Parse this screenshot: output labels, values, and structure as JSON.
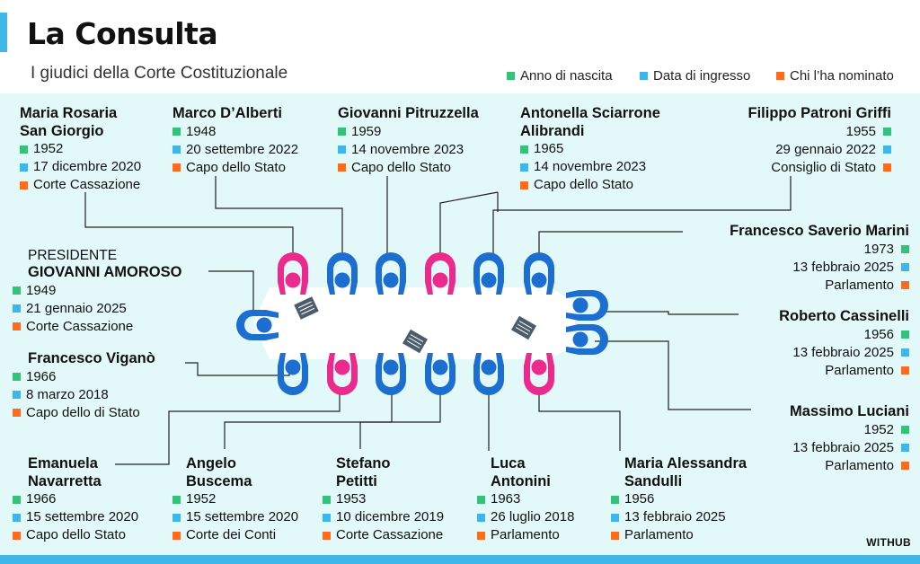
{
  "header": {
    "title": "La Consulta",
    "subtitle": "I giudici della Corte Costituzionale"
  },
  "legend": {
    "birth": "Anno di nascita",
    "entry": "Data di ingresso",
    "appointed": "Chi l’ha nominato"
  },
  "colors": {
    "accent": "#3fb7e9",
    "panel": "#e3f8f8",
    "birth": "#32c27a",
    "entry": "#3cb6ec",
    "appointed": "#ff6b1a",
    "man_figure": "#1c6fd1",
    "woman_figure": "#ec2a8d"
  },
  "judges": {
    "sangiorgio": {
      "name": "Maria Rosaria San Giorgio",
      "name_line1": "Maria Rosaria",
      "name_line2": "San Giorgio",
      "birth": "1952",
      "entry": "17 dicembre 2020",
      "appointed": "Corte Cassazione"
    },
    "dalberti": {
      "name": "Marco D’Alberti",
      "birth": "1948",
      "entry": "20 settembre 2022",
      "appointed": "Capo dello Stato"
    },
    "pitruzzella": {
      "name": "Giovanni Pitruzzella",
      "birth": "1959",
      "entry": "14 novembre 2023",
      "appointed": "Capo dello Stato"
    },
    "alibrandi": {
      "name_line1": "Antonella Sciarrone",
      "name_line2": "Alibrandi",
      "birth": "1965",
      "entry": "14 novembre 2023",
      "appointed": "Capo dello Stato"
    },
    "griffi": {
      "name": "Filippo Patroni Griffi",
      "birth": "1955",
      "entry": "29 gennaio 2022",
      "appointed": "Consiglio di Stato"
    },
    "marini": {
      "name": "Francesco Saverio Marini",
      "birth": "1973",
      "entry": "13 febbraio 2025",
      "appointed": "Parlamento"
    },
    "amoroso": {
      "label": "PRESIDENTE",
      "name": "GIOVANNI AMOROSO",
      "birth": "1949",
      "entry": "21 gennaio 2025",
      "appointed": "Corte Cassazione"
    },
    "cassinelli": {
      "name": "Roberto Cassinelli",
      "birth": "1956",
      "entry": "13 febbraio 2025",
      "appointed": "Parlamento"
    },
    "vigano": {
      "name": "Francesco Viganò",
      "birth": "1966",
      "entry": "8 marzo 2018",
      "appointed": "Capo dello di Stato"
    },
    "luciani": {
      "name": "Massimo Luciani",
      "birth": "1952",
      "entry": "13 febbraio 2025",
      "appointed": "Parlamento"
    },
    "navarretta": {
      "name_line1": "Emanuela",
      "name_line2": "Navarretta",
      "birth": "1966",
      "entry": "15 settembre 2020",
      "appointed": "Capo dello Stato"
    },
    "buscema": {
      "name_line1": "Angelo",
      "name_line2": "Buscema",
      "birth": "1952",
      "entry": "15 settembre 2020",
      "appointed": "Corte dei Conti"
    },
    "petitti": {
      "name_line1": "Stefano",
      "name_line2": "Petitti",
      "birth": "1953",
      "entry": "10 dicembre 2019",
      "appointed": "Corte Cassazione"
    },
    "antonini": {
      "name_line1": "Luca",
      "name_line2": "Antonini",
      "birth": "1963",
      "entry": "26 luglio 2018",
      "appointed": "Parlamento"
    },
    "sandulli": {
      "name_line1": "Maria Alessandra",
      "name_line2": "Sandulli",
      "birth": "1956",
      "entry": "13 febbraio 2025",
      "appointed": "Parlamento"
    }
  },
  "credit": "WITHUB"
}
